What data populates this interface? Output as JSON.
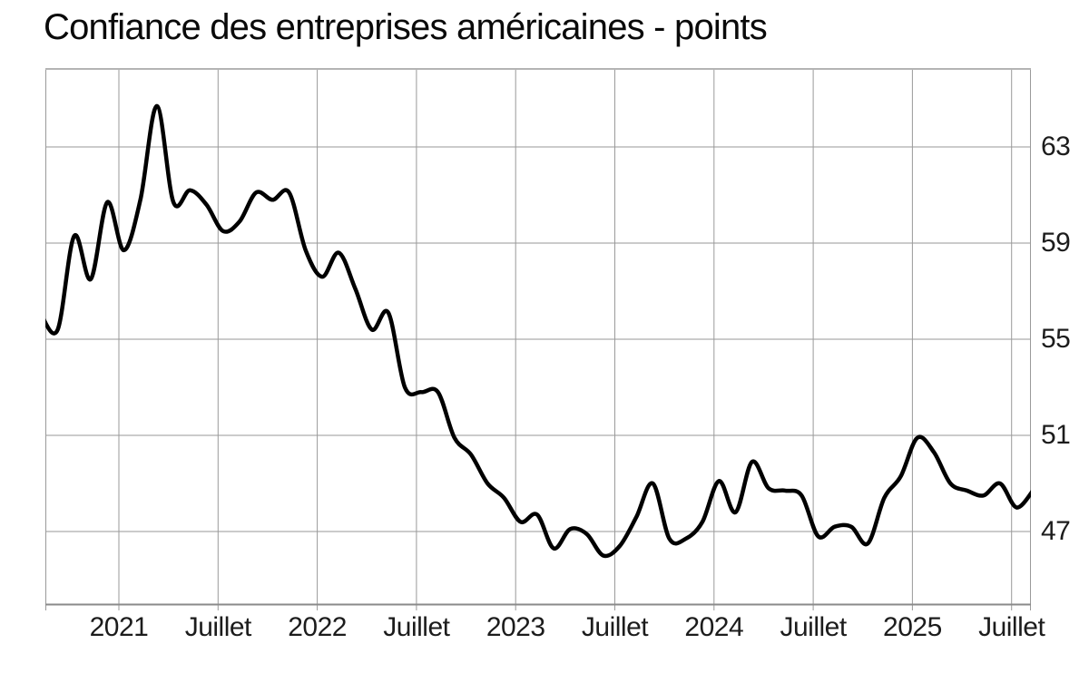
{
  "chart_data": {
    "type": "line",
    "title": "Confiance des entreprises américaines - points",
    "unit": "points",
    "legend": "none",
    "grid": true,
    "y_ticks": [
      63,
      59,
      55,
      51,
      47
    ],
    "y_range_visible": [
      43.8,
      66.3
    ],
    "x_range": [
      "2020-08",
      "2025-08"
    ],
    "x_ticks": [
      {
        "label": "2021",
        "month": "2021-01"
      },
      {
        "label": "Juillet",
        "month": "2021-07"
      },
      {
        "label": "2022",
        "month": "2022-01"
      },
      {
        "label": "Juillet",
        "month": "2022-07"
      },
      {
        "label": "2023",
        "month": "2023-01"
      },
      {
        "label": "Juillet",
        "month": "2023-07"
      },
      {
        "label": "2024",
        "month": "2024-01"
      },
      {
        "label": "Juillet",
        "month": "2024-07"
      },
      {
        "label": "2025",
        "month": "2025-01"
      },
      {
        "label": "Juillet",
        "month": "2025-07"
      }
    ],
    "series": [
      {
        "name": "Confiance des entreprises américaines",
        "color": "#000000",
        "points": [
          [
            "2020-08",
            56.0
          ],
          [
            "2020-09",
            55.4
          ],
          [
            "2020-10",
            59.3
          ],
          [
            "2020-11",
            57.5
          ],
          [
            "2020-12",
            60.7
          ],
          [
            "2021-01",
            58.7
          ],
          [
            "2021-02",
            60.8
          ],
          [
            "2021-03",
            64.7
          ],
          [
            "2021-04",
            60.7
          ],
          [
            "2021-05",
            61.2
          ],
          [
            "2021-06",
            60.6
          ],
          [
            "2021-07",
            59.5
          ],
          [
            "2021-08",
            59.9
          ],
          [
            "2021-09",
            61.1
          ],
          [
            "2021-10",
            60.8
          ],
          [
            "2021-11",
            61.1
          ],
          [
            "2021-12",
            58.7
          ],
          [
            "2022-01",
            57.6
          ],
          [
            "2022-02",
            58.6
          ],
          [
            "2022-03",
            57.1
          ],
          [
            "2022-04",
            55.4
          ],
          [
            "2022-05",
            56.1
          ],
          [
            "2022-06",
            53.0
          ],
          [
            "2022-07",
            52.8
          ],
          [
            "2022-08",
            52.8
          ],
          [
            "2022-09",
            50.9
          ],
          [
            "2022-10",
            50.2
          ],
          [
            "2022-11",
            49.0
          ],
          [
            "2022-12",
            48.4
          ],
          [
            "2023-01",
            47.4
          ],
          [
            "2023-02",
            47.7
          ],
          [
            "2023-03",
            46.3
          ],
          [
            "2023-04",
            47.1
          ],
          [
            "2023-05",
            46.9
          ],
          [
            "2023-06",
            46.0
          ],
          [
            "2023-07",
            46.4
          ],
          [
            "2023-08",
            47.6
          ],
          [
            "2023-09",
            49.0
          ],
          [
            "2023-10",
            46.7
          ],
          [
            "2023-11",
            46.7
          ],
          [
            "2023-12",
            47.4
          ],
          [
            "2024-01",
            49.1
          ],
          [
            "2024-02",
            47.8
          ],
          [
            "2024-03",
            49.9
          ],
          [
            "2024-04",
            48.8
          ],
          [
            "2024-05",
            48.7
          ],
          [
            "2024-06",
            48.5
          ],
          [
            "2024-07",
            46.8
          ],
          [
            "2024-08",
            47.2
          ],
          [
            "2024-09",
            47.2
          ],
          [
            "2024-10",
            46.5
          ],
          [
            "2024-11",
            48.4
          ],
          [
            "2024-12",
            49.3
          ],
          [
            "2025-01",
            50.9
          ],
          [
            "2025-02",
            50.3
          ],
          [
            "2025-03",
            49.0
          ],
          [
            "2025-04",
            48.7
          ],
          [
            "2025-05",
            48.5
          ],
          [
            "2025-06",
            49.0
          ],
          [
            "2025-07",
            48.0
          ],
          [
            "2025-08",
            48.7
          ]
        ]
      }
    ]
  },
  "colors": {
    "background": "#ffffff",
    "line": "#000000",
    "grid_horizontal": "#cbcbcb",
    "grid_vertical": "#9a9a9a",
    "frame_top": "#b4b4b4",
    "frame_bottom": "#8a8a8a",
    "frame_side": "#9a9a9a",
    "title_text": "#0a0a0a",
    "axis_text": "#1c1c1c"
  }
}
